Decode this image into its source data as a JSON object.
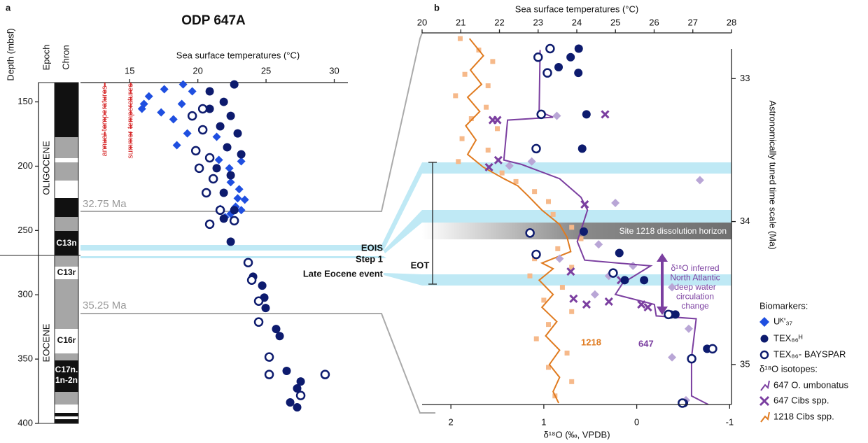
{
  "chart_data": [
    {
      "type": "scatter",
      "panel": "a",
      "title": "ODP 647A",
      "xlabel": "Sea surface temperatures (°C)",
      "ylabel": "Depth (mbsf)",
      "epoch_label": "Epoch",
      "chron_label": "Chron",
      "epochs": [
        "OLIGOCENE",
        "EOCENE"
      ],
      "chrons": [
        "C13n",
        "C13r",
        "C16r",
        "C17n.",
        "1n-2n"
      ],
      "xlim": [
        11.5,
        31
      ],
      "xticks": [
        15,
        20,
        25,
        30
      ],
      "ylim": [
        135,
        400
      ],
      "yticks": [
        150,
        200,
        250,
        300,
        350,
        400
      ],
      "reference_lines": [
        {
          "value": 13.18,
          "label": "annual temperatures",
          "color": "#d62728"
        },
        {
          "value": 15.08,
          "label": "summer temperatures",
          "color": "#d62728"
        }
      ],
      "series": [
        {
          "name": "Uᴷ'₃₇",
          "marker": "diamond",
          "color": "#1f4fe0",
          "x": [
            16.41,
            17.54,
            18.92,
            16.05,
            15.9,
            18.82,
            19.59,
            17.31,
            18.21,
            19.23,
            18.46,
            21.38,
            21.54,
            23.18,
            22.41,
            23.03,
            22.92,
            22.77,
            23.18,
            22.41,
            22.0,
            21.64,
            23.44,
            22.31
          ],
          "values": [
            145.7,
            140.2,
            136.4,
            151.6,
            155.4,
            151.6,
            141.8,
            158.2,
            163.6,
            174.5,
            183.7,
            177.2,
            195.1,
            196.2,
            212.5,
            217.9,
            225.0,
            231.5,
            234.2,
            237.0,
            239.7,
            233.2,
            226.1,
            201.6
          ]
        },
        {
          "marker": "circle",
          "color": "#0d1b6e",
          "x": [
            22.67,
            20.87,
            21.9,
            20.87,
            22.41,
            21.64,
            22.92,
            22.15,
            23.18,
            21.38,
            22.41,
            21.9,
            22.67,
            21.9,
            22.41,
            24.05,
            24.72,
            24.87,
            24.97,
            25.74,
            26.0,
            26.51,
            27.54,
            27.28,
            26.77,
            27.28
          ],
          "values": [
            136.4,
            141.8,
            150.0,
            155.4,
            160.9,
            169.0,
            174.5,
            185.3,
            190.8,
            201.6,
            207.1,
            220.7,
            234.2,
            240.8,
            258.7,
            285.9,
            292.9,
            302.2,
            310.3,
            326.6,
            332.1,
            359.2,
            367.4,
            372.8,
            383.7,
            387.5
          ]
        },
        {
          "marker": "open-circle",
          "color": "#0d1b6e",
          "x": [
            20.36,
            19.59,
            20.36,
            19.85,
            20.87,
            20.1,
            21.13,
            20.62,
            21.64,
            20.87,
            22.67,
            23.69,
            23.95,
            24.46,
            24.46,
            25.23,
            25.23,
            29.33,
            27.54
          ],
          "values": [
            155.4,
            160.9,
            171.7,
            188.0,
            193.5,
            201.6,
            209.8,
            220.7,
            234.2,
            245.1,
            242.4,
            275.0,
            288.6,
            304.9,
            321.2,
            348.4,
            362.0,
            362.0,
            378.3
          ]
        }
      ]
    },
    {
      "type": "scatter",
      "panel": "b",
      "xlabel": "Sea surface temperatures (°C)",
      "xlim": [
        20,
        28
      ],
      "xticks": [
        20,
        21,
        22,
        23,
        24,
        25,
        26,
        27,
        28
      ],
      "x2label": "δ¹⁸O (‰, VPDB)",
      "x2lim": [
        2.31,
        -1.02
      ],
      "x2ticks": [
        2,
        1,
        0,
        -1
      ],
      "ylabel": "Astronomically tuned time scale (Ma)",
      "ylim": [
        32.68,
        35.28
      ],
      "yticks": [
        33,
        34,
        35
      ],
      "legend_headings": [
        "Biomarkers:",
        "δ¹⁸O isotopes:"
      ],
      "annotations": {
        "ma_top": "32.75 Ma",
        "ma_bottom": "35.25 Ma",
        "eois": "EOIS",
        "step1": "Step 1",
        "late_eocene": "Late Eocene event",
        "eot": "EOT",
        "dissolution": "Site 1218 dissolution horizon",
        "label_1218": "1218",
        "label_647": "647",
        "arrow_text": [
          "δ¹⁸O inferred",
          "North Atlantic",
          "deep water",
          "circulation",
          "change"
        ]
      },
      "series": [
        {
          "marker": "square",
          "color": "#f6b98a",
          "axis": "x2",
          "x": [
            1.9,
            1.7,
            1.55,
            1.85,
            1.6,
            1.95,
            1.62,
            1.78,
            1.5,
            1.88,
            1.6,
            1.92,
            1.45,
            1.3,
            1.1,
            0.95,
            0.9,
            0.7,
            0.6,
            0.85,
            1.1,
            0.7,
            1.15,
            0.8,
            1.0,
            0.7,
            0.95,
            1.08,
            0.75,
            0.95,
            0.7,
            0.88
          ],
          "values": [
            32.72,
            32.8,
            32.88,
            32.97,
            33.05,
            33.12,
            33.2,
            33.28,
            33.35,
            33.42,
            33.5,
            33.58,
            33.66,
            33.72,
            33.79,
            33.86,
            33.95,
            34.04,
            34.12,
            34.19,
            34.26,
            34.32,
            34.38,
            34.46,
            34.55,
            34.63,
            34.72,
            34.82,
            34.92,
            35.02,
            35.12,
            35.22
          ]
        },
        {
          "name": "1218 Cibs spp.",
          "marker": "line",
          "color": "#e07b20",
          "axis": "x2",
          "x": [
            1.8,
            1.65,
            1.79,
            1.67,
            1.82,
            1.69,
            1.84,
            1.73,
            1.82,
            1.65,
            1.43,
            1.28,
            1.17,
            1.02,
            0.83,
            0.75,
            0.71,
            1.02,
            0.9,
            1.05,
            0.9,
            1.02,
            0.86,
            0.98,
            0.83,
            0.94,
            0.83,
            0.9,
            0.84
          ],
          "values": [
            32.72,
            32.84,
            32.94,
            33.04,
            33.13,
            33.23,
            33.33,
            33.43,
            33.53,
            33.62,
            33.7,
            33.75,
            33.82,
            33.92,
            34.02,
            34.11,
            34.21,
            34.29,
            34.33,
            34.41,
            34.51,
            34.6,
            34.7,
            34.8,
            34.9,
            35.0,
            35.09,
            35.19,
            35.27
          ]
        },
        {
          "marker": "diamond",
          "color": "#b9a6d6",
          "axis": "x2",
          "x": [
            0.86,
            1.37,
            1.13,
            0.23,
            -0.68,
            0.41,
            0.3,
            0.04,
            -0.38,
            -0.56,
            -0.38,
            -0.53,
            0.83,
            0.45
          ],
          "values": [
            33.26,
            33.61,
            33.58,
            33.87,
            33.71,
            34.16,
            34.38,
            34.31,
            34.46,
            34.75,
            34.95,
            35.25,
            34.26,
            34.51
          ]
        },
        {
          "name": "647 O. umbonatus",
          "marker": "line",
          "color": "#7b3fa0",
          "axis": "x2",
          "x": [
            1.04,
            1.05,
            0.9,
            1.39,
            1.43,
            1.24,
            0.83,
            0.6,
            0.53,
            0.64,
            0.56,
            -0.15,
            0.15,
            0.23,
            -0.19,
            -0.21,
            -0.64,
            -0.59,
            -0.59,
            -0.77
          ],
          "values": [
            32.8,
            33.23,
            33.27,
            33.29,
            33.57,
            33.6,
            33.7,
            33.83,
            33.92,
            34.14,
            34.27,
            34.31,
            34.43,
            34.51,
            34.58,
            34.66,
            34.68,
            34.95,
            35.22,
            35.28
          ]
        },
        {
          "name": "647 Cibs spp.",
          "marker": "x",
          "color": "#7b3fa0",
          "axis": "x2",
          "x": [
            1.55,
            1.5,
            0.34,
            1.59,
            1.49,
            0.56,
            0.71,
            0.17,
            0.68,
            0.54,
            0.3,
            -0.05,
            -0.12
          ],
          "values": [
            33.29,
            33.29,
            33.25,
            33.62,
            33.57,
            33.88,
            34.35,
            34.41,
            34.54,
            34.58,
            34.56,
            34.58,
            34.6
          ]
        },
        {
          "name": "TEX₈₆ᴴ",
          "marker": "circle",
          "color": "#0d1b6e",
          "x": [
            24.05,
            23.84,
            23.53,
            24.04,
            24.25,
            24.14,
            24.18,
            25.1,
            25.24,
            25.74,
            26.43,
            26.55,
            27.37,
            26.77
          ],
          "values": [
            32.79,
            32.85,
            32.92,
            32.96,
            33.25,
            33.49,
            34.07,
            34.22,
            34.41,
            34.41,
            34.65,
            34.65,
            34.89,
            35.27
          ]
        },
        {
          "name": "TEX₈₆- BAYSPAR",
          "marker": "open-circle",
          "color": "#0d1b6e",
          "x": [
            23.31,
            23.0,
            23.24,
            23.08,
            22.95,
            22.79,
            22.95,
            24.94,
            26.37,
            27.51,
            26.97,
            26.73
          ],
          "values": [
            32.79,
            32.85,
            32.96,
            33.25,
            33.49,
            34.08,
            34.23,
            34.36,
            34.65,
            34.89,
            34.96,
            35.27
          ]
        }
      ]
    }
  ]
}
